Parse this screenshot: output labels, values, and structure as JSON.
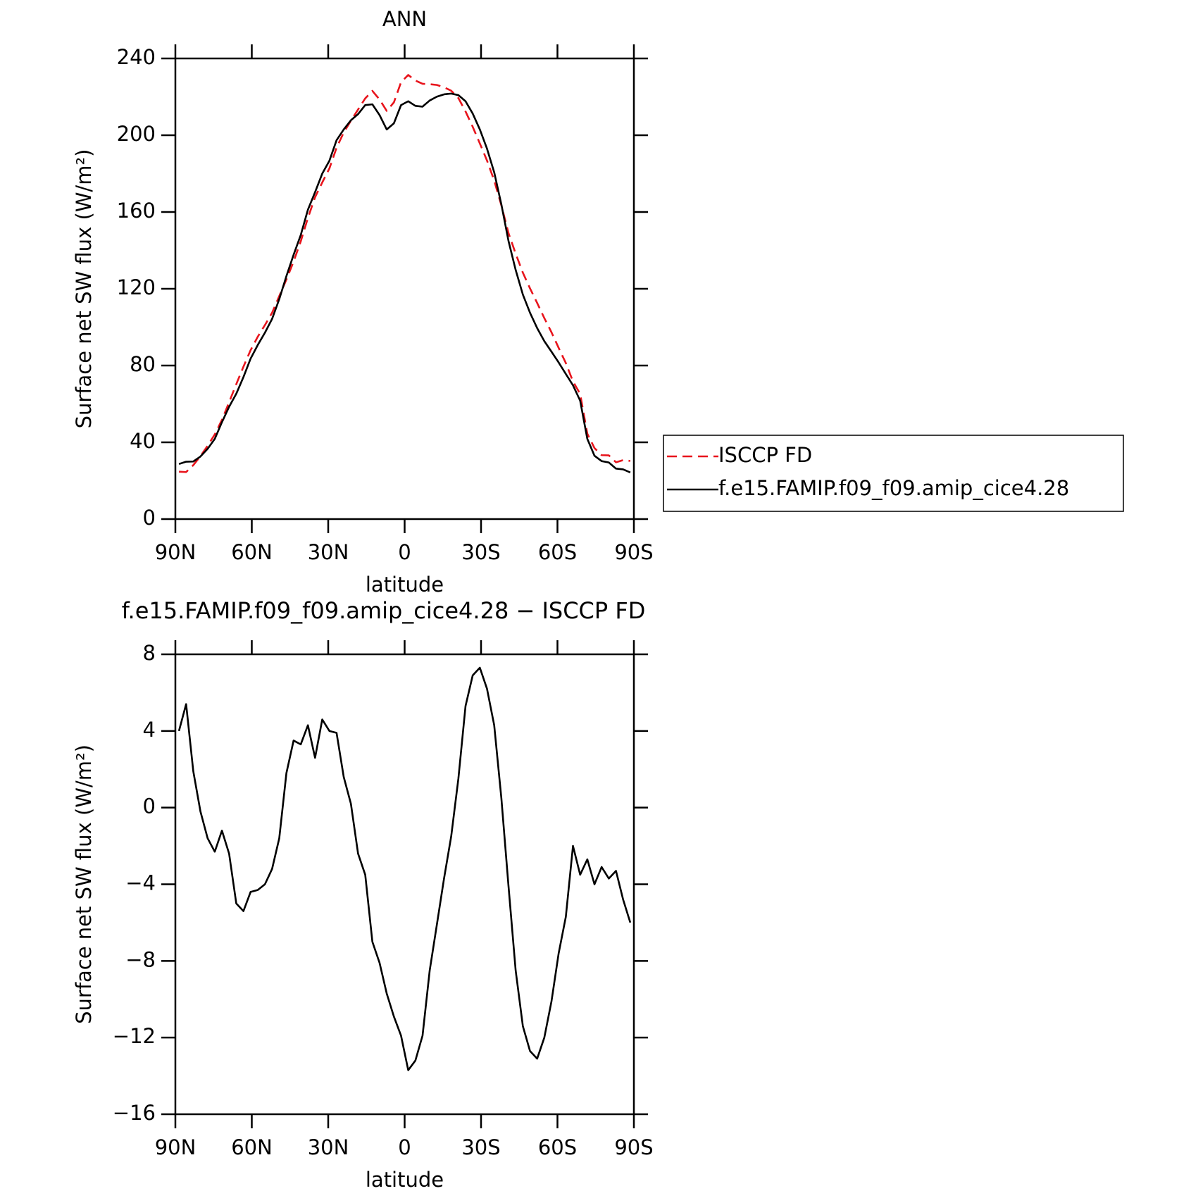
{
  "chart_data": [
    {
      "type": "line",
      "title": "ANN",
      "xlabel": "latitude",
      "ylabel": "Surface net SW flux (W/m²)",
      "x": [
        88.59,
        85.78,
        82.97,
        80.16,
        77.34,
        74.53,
        71.72,
        68.91,
        66.09,
        63.28,
        60.47,
        57.66,
        54.84,
        52.03,
        49.22,
        46.41,
        43.59,
        40.78,
        37.97,
        35.16,
        32.34,
        29.53,
        26.72,
        23.91,
        21.09,
        18.28,
        15.47,
        12.66,
        9.84,
        7.03,
        4.22,
        1.41,
        -1.41,
        -4.22,
        -7.03,
        -9.84,
        -12.66,
        -15.47,
        -18.28,
        -21.09,
        -23.91,
        -26.72,
        -29.53,
        -32.34,
        -35.16,
        -37.97,
        -40.78,
        -43.59,
        -46.41,
        -49.22,
        -52.03,
        -54.84,
        -57.66,
        -60.47,
        -63.28,
        -66.09,
        -68.91,
        -71.72,
        -74.53,
        -77.34,
        -80.16,
        -82.97,
        -85.78,
        -88.59
      ],
      "series": [
        {
          "name": "ISCCP FD",
          "color": "#e8141c",
          "dashed": true,
          "values": [
            24.7,
            24.5,
            28.1,
            32.8,
            38.2,
            44.1,
            51.7,
            60.9,
            70.3,
            79.4,
            88.0,
            95.0,
            101.1,
            107.5,
            116.2,
            124.8,
            134.2,
            144.7,
            156.9,
            167.7,
            175.4,
            182.7,
            193.5,
            201.4,
            207.6,
            213.4,
            219.2,
            223.1,
            218.6,
            212.7,
            217.1,
            227.6,
            231.4,
            228.5,
            226.8,
            226.6,
            226.2,
            225.0,
            223.2,
            219.4,
            212.4,
            204.4,
            195.7,
            186.8,
            176.4,
            163.5,
            149.0,
            138.3,
            128.4,
            120.2,
            112.6,
            104.7,
            97.3,
            89.2,
            81.3,
            71.7,
            65.2,
            44.5,
            37.0,
            33.3,
            33.2,
            29.6,
            30.7,
            30.3
          ]
        },
        {
          "name": "f.e15.FAMIP.f09_f09.amip_cice4.28",
          "color": "#000000",
          "dashed": false,
          "values": [
            28.7,
            29.9,
            30.0,
            32.6,
            36.6,
            41.8,
            50.5,
            58.5,
            65.3,
            74.0,
            83.6,
            90.7,
            97.1,
            104.3,
            114.6,
            126.6,
            137.7,
            148.0,
            161.2,
            170.3,
            180.0,
            186.7,
            197.4,
            203.0,
            207.8,
            211.0,
            215.7,
            216.1,
            210.5,
            203.0,
            206.2,
            215.7,
            217.7,
            215.3,
            214.9,
            218.1,
            220.1,
            221.3,
            221.7,
            220.9,
            217.7,
            211.3,
            203.0,
            193.0,
            180.7,
            164.0,
            144.9,
            129.8,
            117.0,
            107.5,
            99.5,
            92.7,
            87.2,
            81.6,
            75.6,
            69.7,
            61.7,
            41.8,
            33.0,
            30.2,
            29.5,
            26.3,
            25.9,
            24.3
          ]
        }
      ],
      "xlim": [
        90,
        -90
      ],
      "xticks": [
        {
          "value": 90,
          "label": "90N"
        },
        {
          "value": 60,
          "label": "60N"
        },
        {
          "value": 30,
          "label": "30N"
        },
        0,
        {
          "value": -30,
          "label": "30S"
        },
        {
          "value": -60,
          "label": "60S"
        },
        {
          "value": -90,
          "label": "90S"
        }
      ],
      "ylim": [
        0,
        240
      ],
      "yticks": [
        0,
        40,
        80,
        120,
        160,
        200,
        240
      ],
      "legend": "right"
    },
    {
      "type": "line",
      "title": "f.e15.FAMIP.f09_f09.amip_cice4.28 − ISCCP FD",
      "xlabel": "latitude",
      "ylabel": "Surface net SW flux (W/m²)",
      "x": [
        88.59,
        85.78,
        82.97,
        80.16,
        77.34,
        74.53,
        71.72,
        68.91,
        66.09,
        63.28,
        60.47,
        57.66,
        54.84,
        52.03,
        49.22,
        46.41,
        43.59,
        40.78,
        37.97,
        35.16,
        32.34,
        29.53,
        26.72,
        23.91,
        21.09,
        18.28,
        15.47,
        12.66,
        9.84,
        7.03,
        4.22,
        1.41,
        -1.41,
        -4.22,
        -7.03,
        -9.84,
        -12.66,
        -15.47,
        -18.28,
        -21.09,
        -23.91,
        -26.72,
        -29.53,
        -32.34,
        -35.16,
        -37.97,
        -40.78,
        -43.59,
        -46.41,
        -49.22,
        -52.03,
        -54.84,
        -57.66,
        -60.47,
        -63.28,
        -66.09,
        -68.91,
        -71.72,
        -74.53,
        -77.34,
        -80.16,
        -82.97,
        -85.78,
        -88.59
      ],
      "series": [
        {
          "color": "#000000",
          "dashed": false,
          "values": [
            4.0,
            5.4,
            1.9,
            -0.2,
            -1.6,
            -2.3,
            -1.2,
            -2.4,
            -5.0,
            -5.4,
            -4.4,
            -4.3,
            -4.0,
            -3.2,
            -1.6,
            1.8,
            3.5,
            3.3,
            4.3,
            2.6,
            4.6,
            4.0,
            3.9,
            1.6,
            0.2,
            -2.4,
            -3.5,
            -7.0,
            -8.1,
            -9.7,
            -10.9,
            -11.9,
            -13.7,
            -13.2,
            -11.9,
            -8.5,
            -6.1,
            -3.7,
            -1.5,
            1.5,
            5.3,
            6.9,
            7.3,
            6.2,
            4.3,
            0.5,
            -4.1,
            -8.5,
            -11.4,
            -12.7,
            -13.1,
            -12.0,
            -10.1,
            -7.6,
            -5.7,
            -2.0,
            -3.5,
            -2.7,
            -4.0,
            -3.1,
            -3.7,
            -3.3,
            -4.8,
            -6.0
          ]
        }
      ],
      "xlim": [
        90,
        -90
      ],
      "xticks": [
        {
          "value": 90,
          "label": "90N"
        },
        {
          "value": 60,
          "label": "60N"
        },
        {
          "value": 30,
          "label": "30N"
        },
        0,
        {
          "value": -30,
          "label": "30S"
        },
        {
          "value": -60,
          "label": "60S"
        },
        {
          "value": -90,
          "label": "90S"
        }
      ],
      "ylim": [
        -16,
        8
      ],
      "yticks": [
        {
          "value": -16,
          "label": "−16"
        },
        {
          "value": -12,
          "label": "−12"
        },
        {
          "value": -8,
          "label": "−8"
        },
        {
          "value": -4,
          "label": "−4"
        },
        0,
        4,
        8
      ]
    }
  ]
}
